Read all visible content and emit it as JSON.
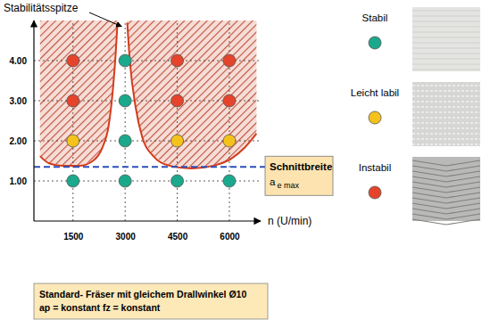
{
  "chart_data": {
    "type": "scatter",
    "x_label": "n (U/min)",
    "xlim": [
      375,
      6900
    ],
    "xticks": [
      1500,
      3000,
      4500,
      6000
    ],
    "ylim": [
      0,
      5
    ],
    "yticks": [
      {
        "value": 1,
        "label": "1.00"
      },
      {
        "value": 2,
        "label": "2.00"
      },
      {
        "value": 3,
        "label": "3.00"
      },
      {
        "value": 4,
        "label": "4.00"
      }
    ],
    "grid": true,
    "legend": "right",
    "series": [
      {
        "type": "line",
        "color": "#d23c1c",
        "line_style": "solid",
        "x": [
          550,
          810,
          1190,
          1700,
          2090,
          2350,
          2530,
          2650,
          2730,
          2780,
          null,
          3060,
          3140,
          3300,
          3500,
          3810,
          4270,
          4910,
          5550,
          6060,
          6450,
          6780
        ],
        "values": [
          1.62,
          1.44,
          1.38,
          1.38,
          1.51,
          1.84,
          2.4,
          3.3,
          4.2,
          4.95,
          null,
          4.95,
          3.95,
          2.85,
          2.07,
          1.62,
          1.38,
          1.31,
          1.38,
          1.56,
          1.84,
          2.18
        ]
      },
      {
        "type": "scatter",
        "name": "Stabil",
        "color": "#1aa98c",
        "marker": "circle",
        "x": [
          1500,
          3000,
          3000,
          3000,
          3000,
          4500,
          6000
        ],
        "values": [
          1,
          1,
          2,
          3,
          4,
          1,
          1
        ]
      },
      {
        "type": "scatter",
        "name": "Leicht labil",
        "color": "#f5c21b",
        "marker": "circle",
        "x": [
          1500,
          4500,
          6000
        ],
        "values": [
          2,
          2,
          2
        ]
      },
      {
        "type": "scatter",
        "name": "Instabil",
        "color": "#e5432b",
        "marker": "circle",
        "x": [
          1500,
          1500,
          4500,
          4500,
          6000,
          6000
        ],
        "values": [
          3,
          4,
          3,
          4,
          3,
          4
        ]
      }
    ],
    "annotations": [
      {
        "text": "Stabilitätsspitze",
        "x": 2900,
        "y": 4.85
      }
    ],
    "reference_line": {
      "value": 1.35,
      "label": "Schnittbreite",
      "symbol": "a",
      "subscript": "e max",
      "color": "#2b4fb8",
      "line_style": "dashed"
    },
    "footnote": [
      "Standard- Fräser mit gleichem Drallwinkel Ø10",
      "ap = konstant fz = konstant"
    ]
  }
}
